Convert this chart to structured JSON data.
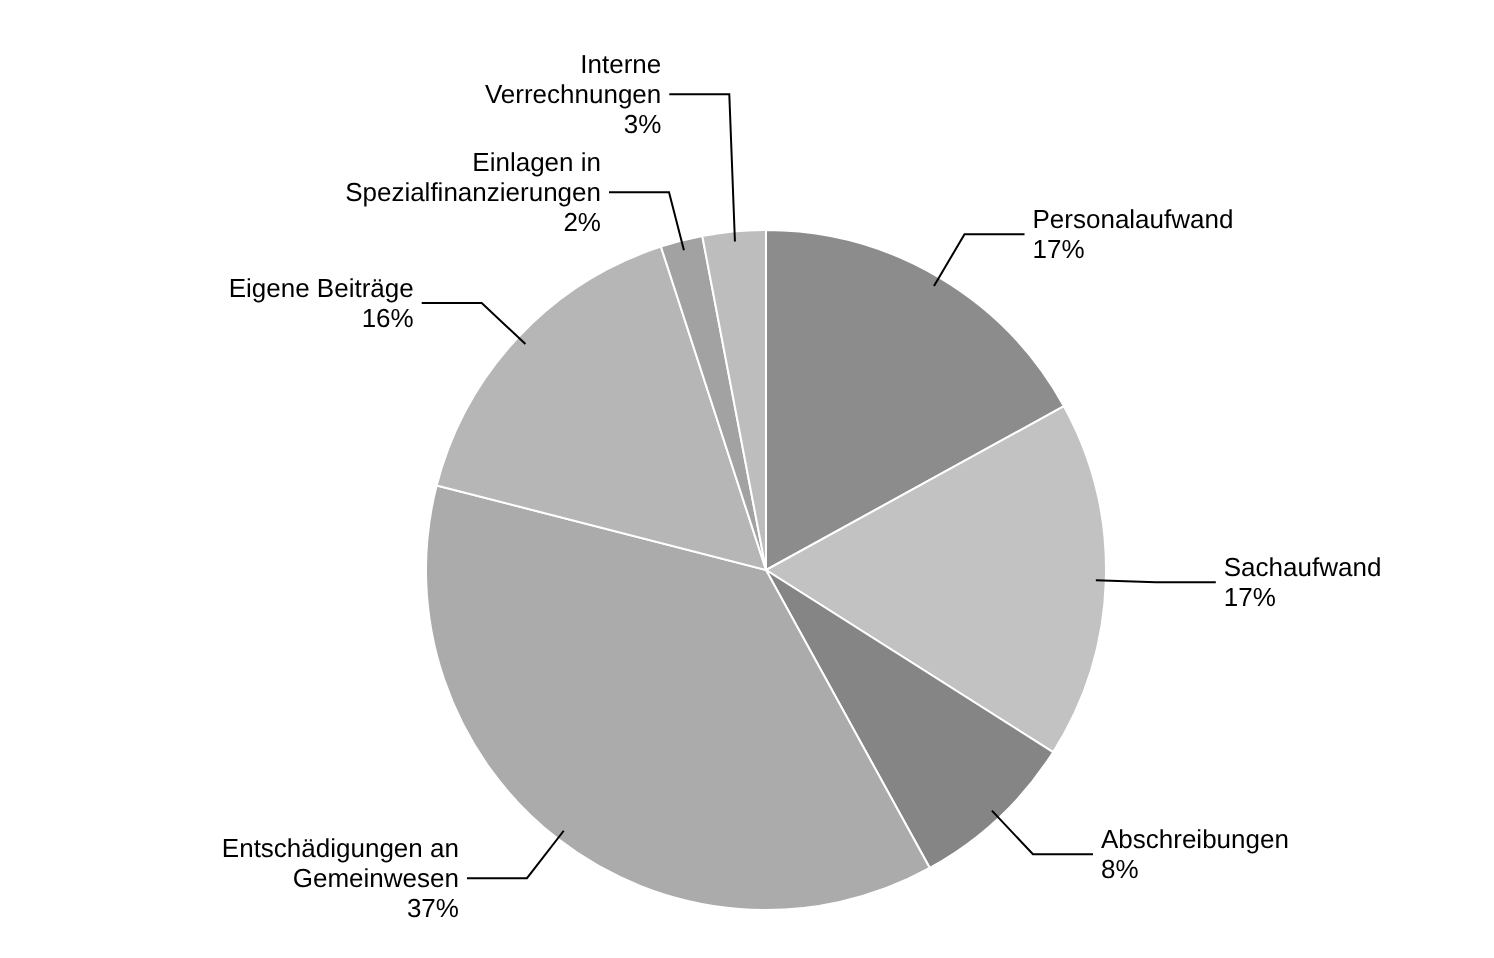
{
  "chart_data": {
    "type": "pie",
    "categories": [
      "Personalaufwand",
      "Sachaufwand",
      "Abschreibungen",
      "Entschädigungen an Gemeinwesen",
      "Eigene Beiträge",
      "Einlagen in Spezialfinanzierungen",
      "Interne Verrechnungen"
    ],
    "values": [
      17,
      17,
      8,
      37,
      16,
      2,
      3
    ],
    "colors": [
      "#8c8c8c",
      "#c2c2c2",
      "#858585",
      "#ababab",
      "#b6b6b6",
      "#a2a2a2",
      "#bdbdbd"
    ],
    "value_labels": [
      "17%",
      "17%",
      "8%",
      "37%",
      "16%",
      "2%",
      "3%"
    ]
  }
}
